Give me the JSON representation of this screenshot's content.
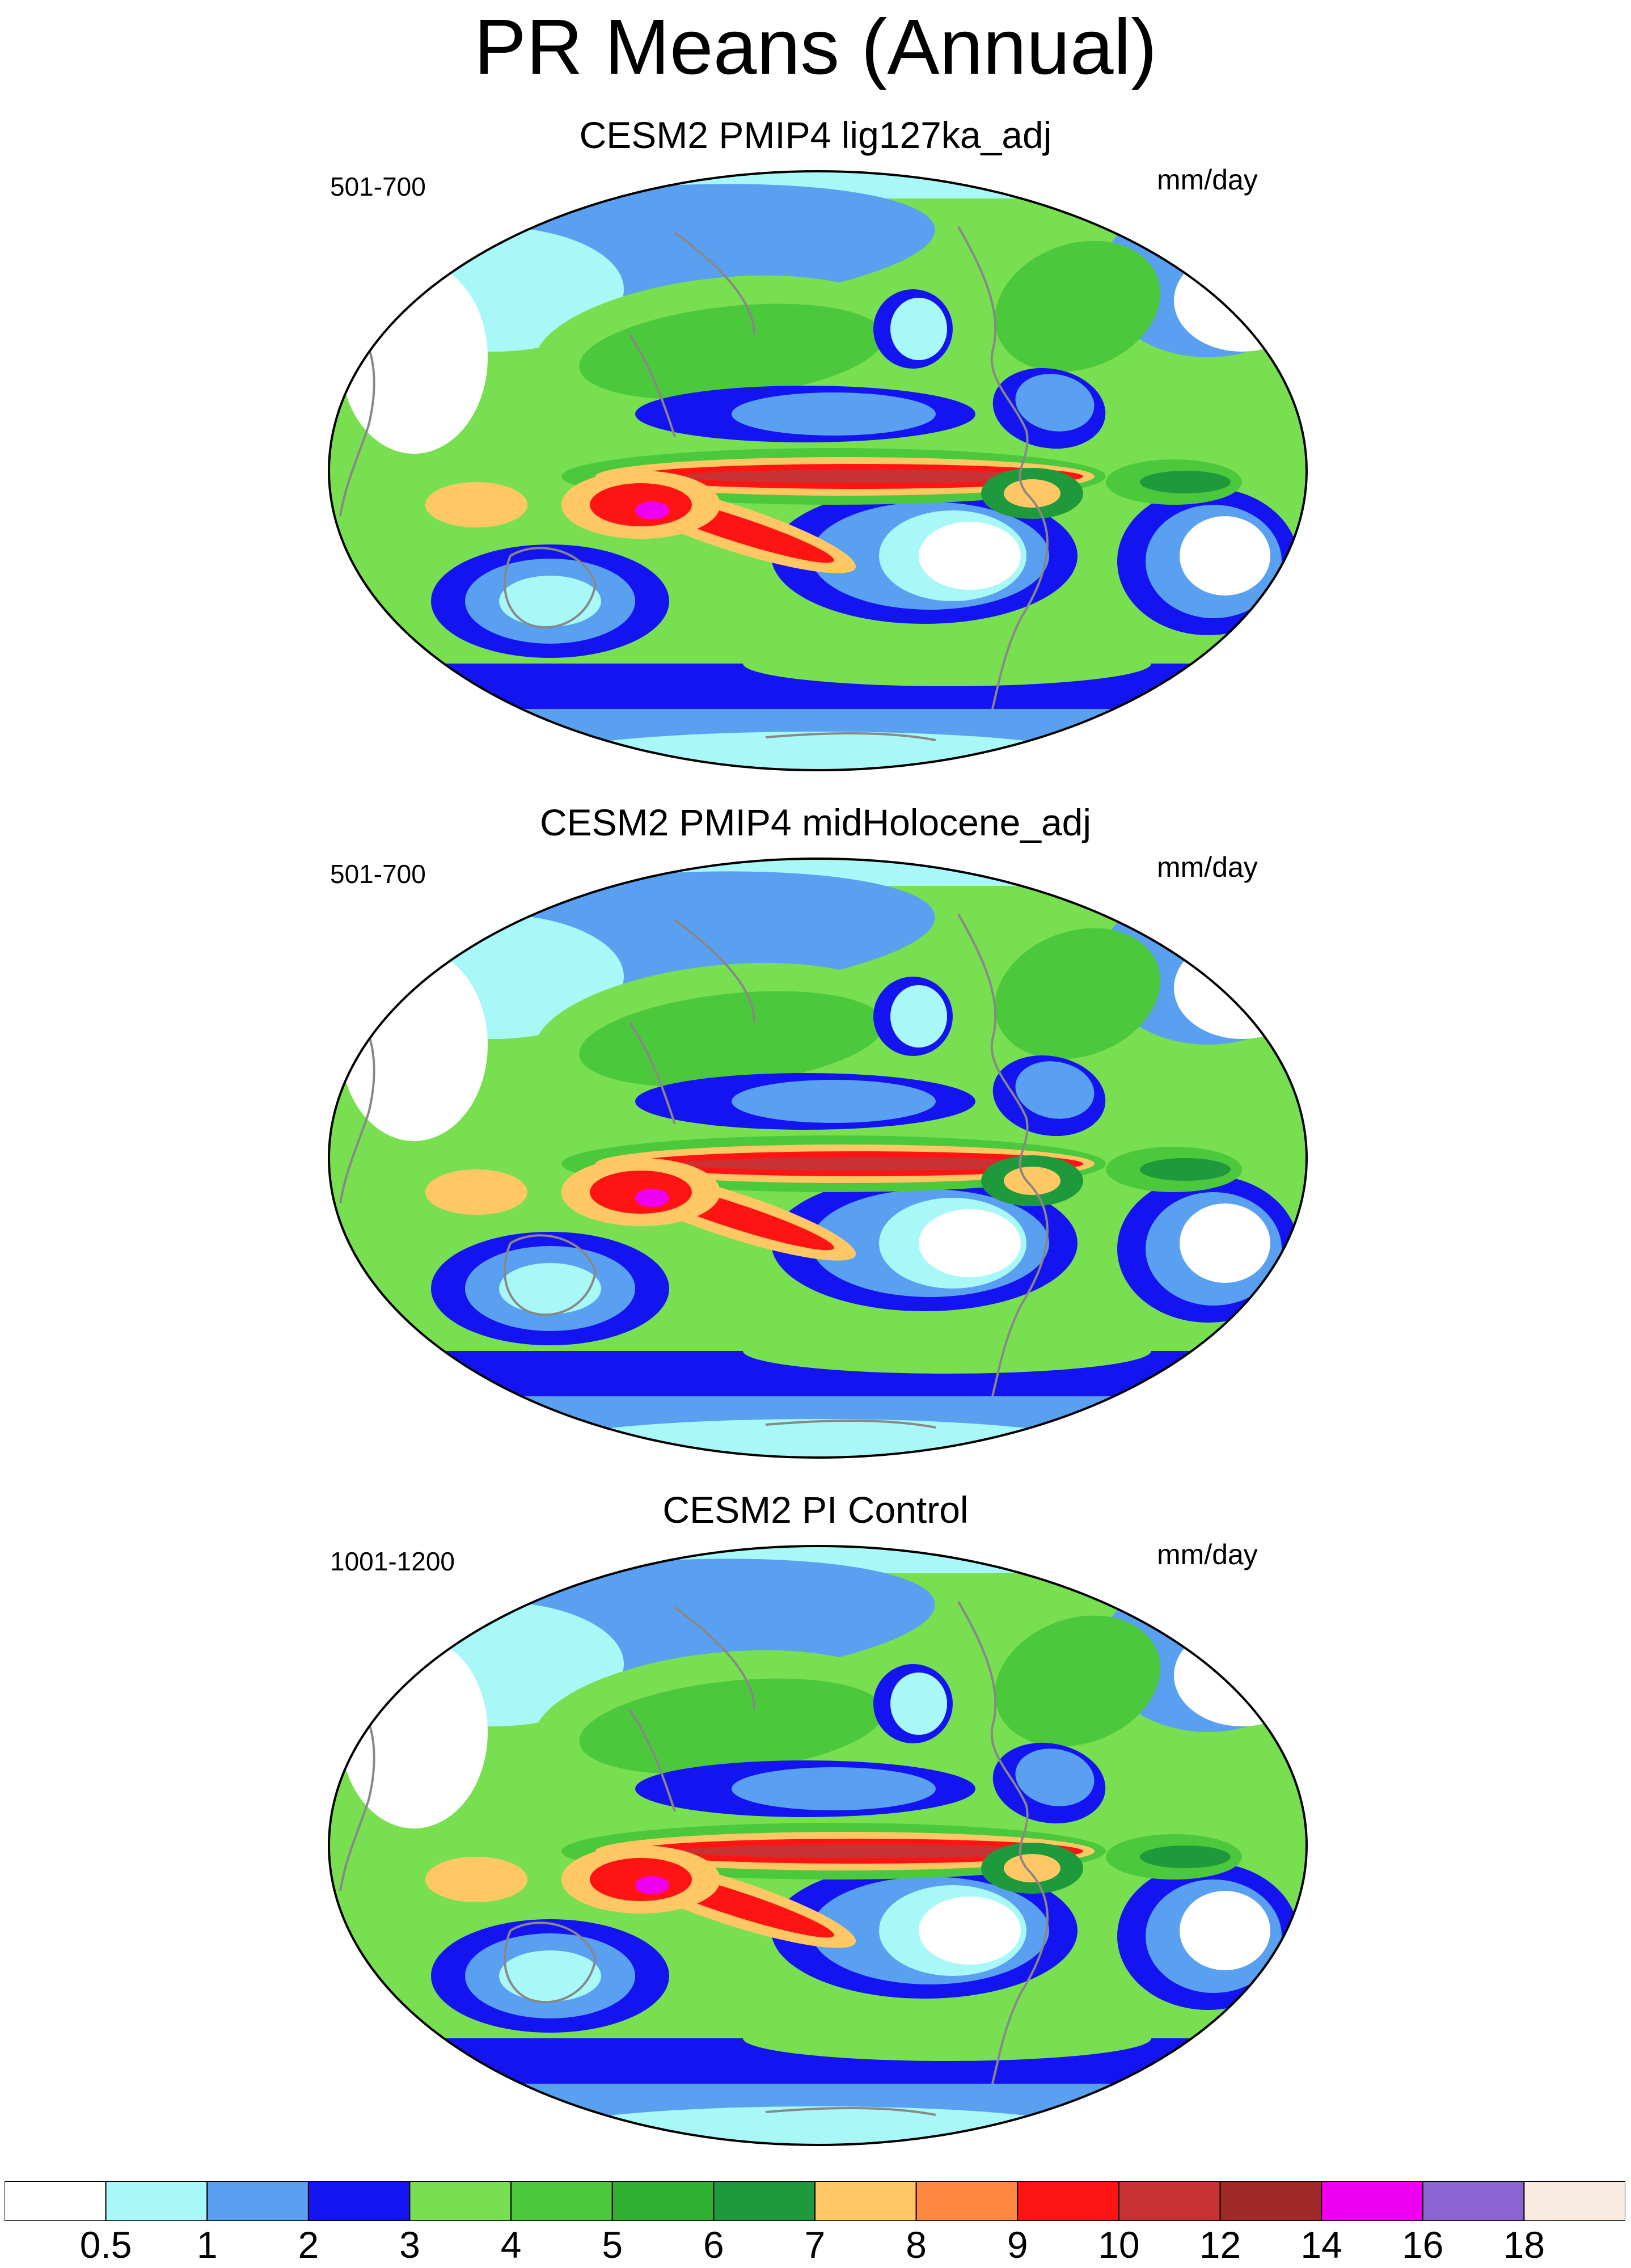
{
  "title": "PR Means (Annual)",
  "panels": [
    {
      "title": "CESM2 PMIP4 lig127ka_adj",
      "period": "501-700",
      "units": "mm/day"
    },
    {
      "title": "CESM2 PMIP4 midHolocene_adj",
      "period": "501-700",
      "units": "mm/day"
    },
    {
      "title": "CESM2 PI Control",
      "period": "1001-1200",
      "units": "mm/day"
    }
  ],
  "colorbar": {
    "labels": [
      "0.5",
      "1",
      "2",
      "3",
      "4",
      "5",
      "6",
      "7",
      "8",
      "9",
      "10",
      "12",
      "14",
      "16",
      "18"
    ],
    "colors": [
      "#ffffff",
      "#a8f8f8",
      "#5aa0f0",
      "#1414f0",
      "#78e050",
      "#4cc83c",
      "#30b030",
      "#1e9a3c",
      "#ffc864",
      "#ff8840",
      "#ff1414",
      "#c83232",
      "#a02828",
      "#f000f0",
      "#8c64d2",
      "#f8ece0"
    ]
  },
  "palette": {
    "ocean_dry": "#ffffff",
    "light_cyan": "#a8f8f8",
    "light_blue": "#5aa0f0",
    "blue": "#1414f0",
    "light_green": "#78e050",
    "green": "#4cc83c",
    "dark_green": "#1e9a3c",
    "orange": "#ffc864",
    "red": "#ff1414",
    "dark_red": "#c83232",
    "magenta": "#f000f0",
    "coastline": "#888888"
  }
}
